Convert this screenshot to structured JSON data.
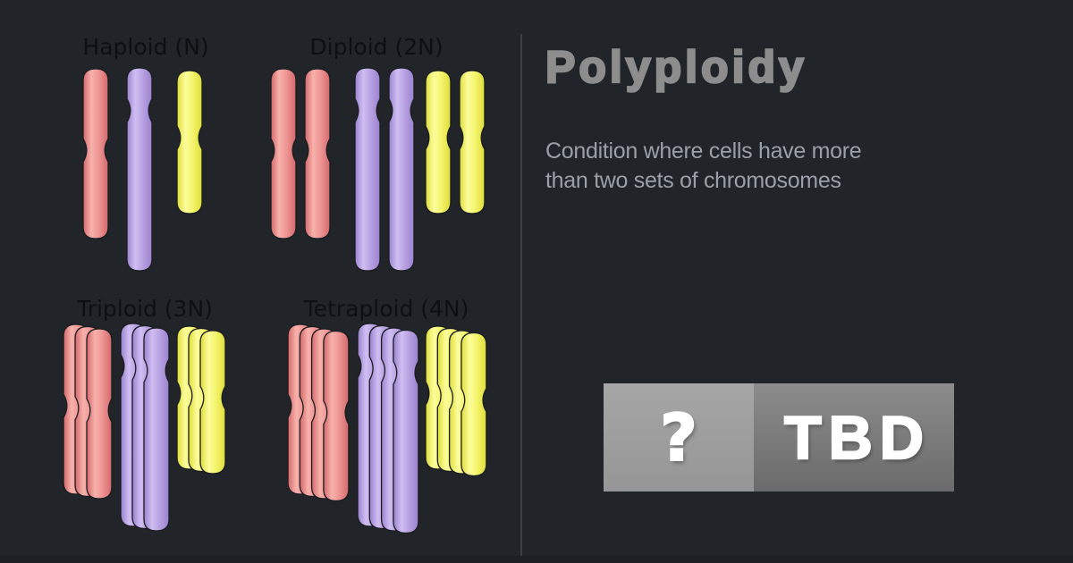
{
  "canvas": {
    "background": "#212529",
    "divider_color": "#3c4046",
    "footer_color": "#1d2025"
  },
  "diagram": {
    "label_color": "#0d0f13",
    "colors": {
      "red": {
        "dark": "#d2686b",
        "light": "#f8b1ab",
        "mid": "#ee9694"
      },
      "purple": {
        "dark": "#9a81cf",
        "light": "#cfbef2",
        "mid": "#b8a2e1"
      },
      "yellow": {
        "dark": "#dedd38",
        "light": "#fdfd9c",
        "mid": "#f4f46e"
      }
    },
    "groups": [
      {
        "id": "haploid",
        "label": "Haploid (N)",
        "copies": 1
      },
      {
        "id": "diploid",
        "label": "Diploid (2N)",
        "copies": 2
      },
      {
        "id": "triploid",
        "label": "Triploid (3N)",
        "copies": 3
      },
      {
        "id": "tetraploid",
        "label": "Tetraploid (4N)",
        "copies": 4
      }
    ]
  },
  "panel": {
    "title": "Polyploidy",
    "title_color": "#8d8d8d",
    "description_lines": [
      "Condition where cells have more",
      "than two sets of chromosomes"
    ],
    "description_color": "#9aa0a7"
  },
  "badge": {
    "icon": "question-mark-icon",
    "question_mark": "?",
    "label": "TBD",
    "left_bg_top": "#a6a6a6",
    "left_bg_bottom": "#969696",
    "right_bg_top": "#8c8c8c",
    "right_bg_bottom": "#6b6b6b",
    "text_color": "#ffffff"
  }
}
